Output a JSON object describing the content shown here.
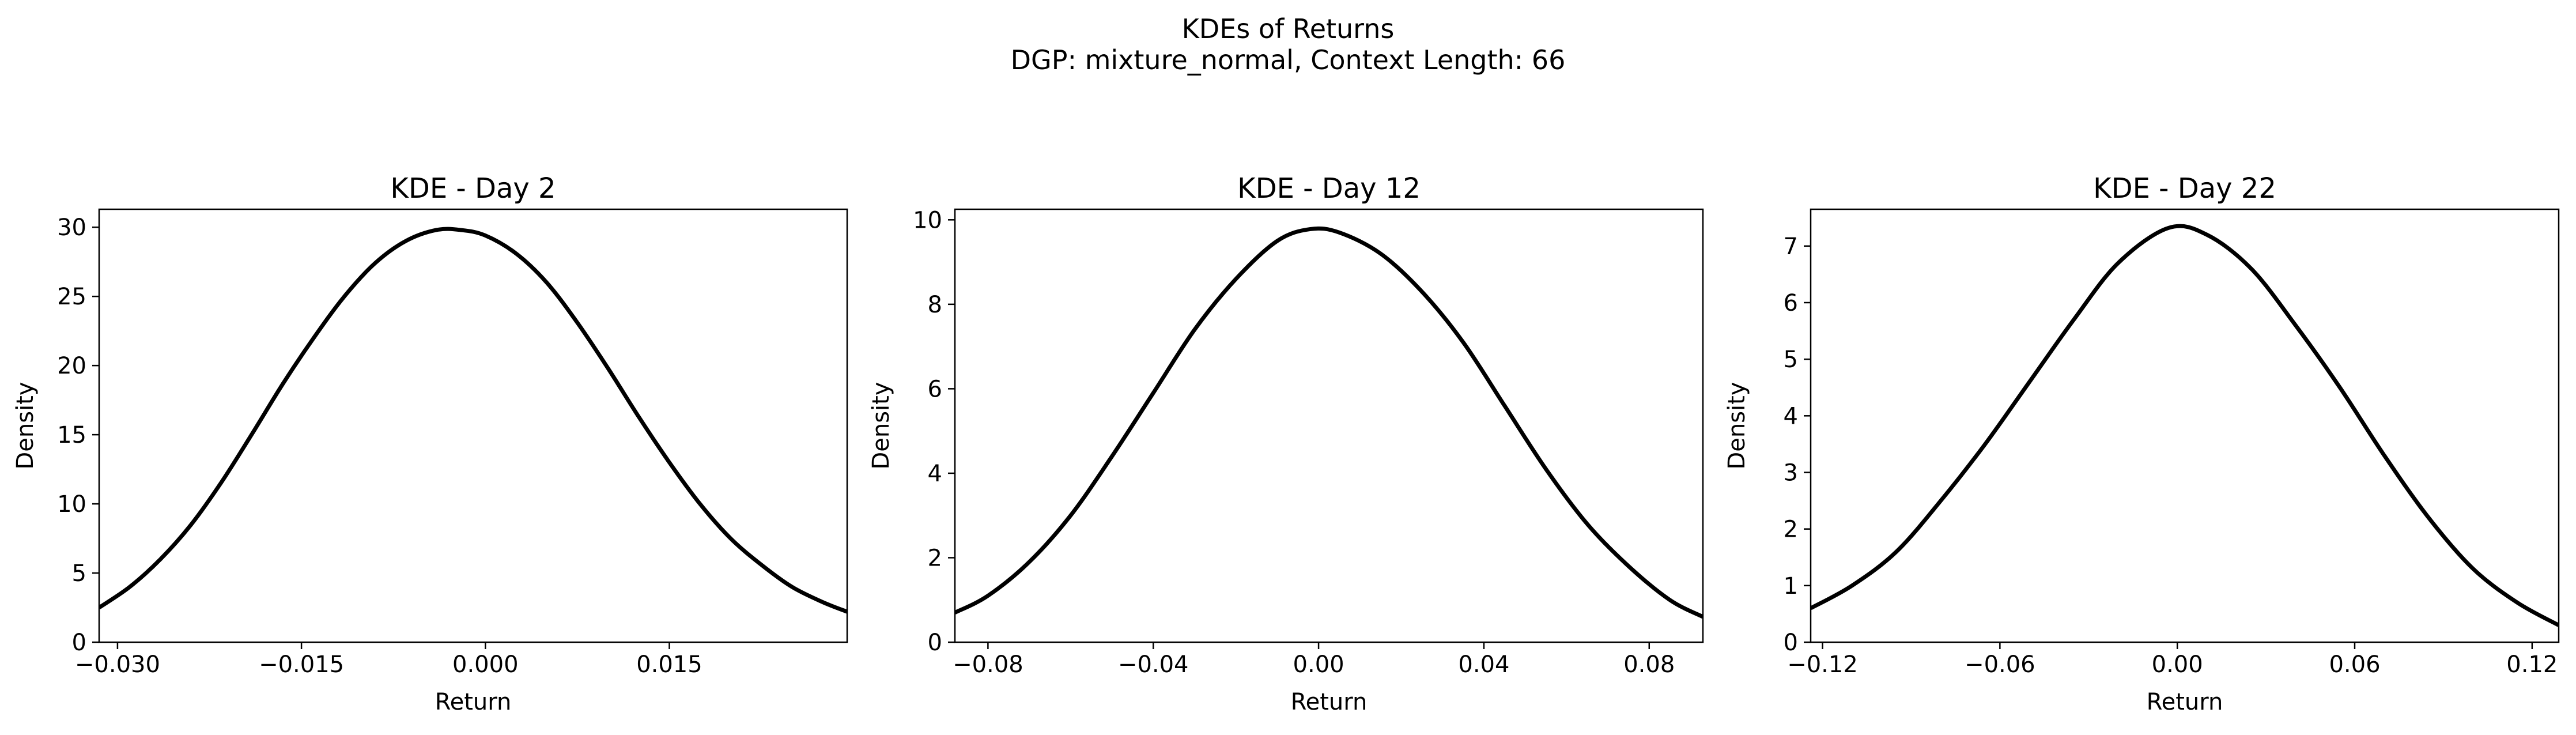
{
  "figure": {
    "suptitle_line1": "KDEs of Returns",
    "suptitle_line2": "DGP: mixture_normal, Context Length: 66",
    "line_color": "#000000"
  },
  "chart_data": [
    {
      "type": "line",
      "title": "KDE - Day 2",
      "xlabel": "Return",
      "ylabel": "Density",
      "xlim": [
        -0.0315,
        0.0295
      ],
      "ylim": [
        0,
        31.3
      ],
      "xticks": [
        -0.03,
        -0.015,
        0.0,
        0.015
      ],
      "xtick_labels": [
        "−0.030",
        "−0.015",
        "0.000",
        "0.015"
      ],
      "yticks": [
        0,
        5,
        10,
        15,
        20,
        25,
        30
      ],
      "ytick_labels": [
        "0",
        "5",
        "10",
        "15",
        "20",
        "25",
        "30"
      ],
      "grid": false,
      "series": [
        {
          "x": [
            -0.0315,
            -0.029,
            -0.0265,
            -0.024,
            -0.0215,
            -0.019,
            -0.0165,
            -0.014,
            -0.0115,
            -0.009,
            -0.0065,
            -0.004,
            -0.002,
            0.0,
            0.0025,
            0.005,
            0.0075,
            0.01,
            0.0125,
            0.015,
            0.0175,
            0.02,
            0.0225,
            0.025,
            0.0275,
            0.0295
          ],
          "y": [
            2.5,
            4.0,
            6.0,
            8.5,
            11.6,
            15.1,
            18.7,
            22.0,
            25.0,
            27.4,
            29.0,
            29.8,
            29.8,
            29.4,
            28.1,
            26.0,
            23.1,
            19.8,
            16.3,
            13.0,
            10.0,
            7.5,
            5.6,
            4.0,
            2.9,
            2.2
          ]
        }
      ]
    },
    {
      "type": "line",
      "title": "KDE - Day 12",
      "xlabel": "Return",
      "ylabel": "Density",
      "xlim": [
        -0.088,
        0.093
      ],
      "ylim": [
        0,
        10.25
      ],
      "xticks": [
        -0.08,
        -0.04,
        0.0,
        0.04,
        0.08
      ],
      "xtick_labels": [
        "−0.08",
        "−0.04",
        "0.00",
        "0.04",
        "0.08"
      ],
      "yticks": [
        0,
        2,
        4,
        6,
        8,
        10
      ],
      "ytick_labels": [
        "0",
        "2",
        "4",
        "6",
        "8",
        "10"
      ],
      "grid": false,
      "series": [
        {
          "x": [
            -0.088,
            -0.08,
            -0.07,
            -0.06,
            -0.05,
            -0.04,
            -0.03,
            -0.02,
            -0.01,
            -0.002,
            0.005,
            0.015,
            0.025,
            0.035,
            0.045,
            0.055,
            0.065,
            0.075,
            0.085,
            0.093
          ],
          "y": [
            0.7,
            1.1,
            1.9,
            3.0,
            4.4,
            5.9,
            7.4,
            8.6,
            9.5,
            9.78,
            9.7,
            9.2,
            8.3,
            7.1,
            5.6,
            4.1,
            2.8,
            1.8,
            1.0,
            0.6
          ]
        }
      ]
    },
    {
      "type": "line",
      "title": "KDE - Day 22",
      "xlabel": "Return",
      "ylabel": "Density",
      "xlim": [
        -0.124,
        0.129
      ],
      "ylim": [
        0,
        7.65
      ],
      "xticks": [
        -0.12,
        -0.06,
        0.0,
        0.06,
        0.12
      ],
      "xtick_labels": [
        "−0.12",
        "−0.06",
        "0.00",
        "0.06",
        "0.12"
      ],
      "yticks": [
        0,
        1,
        2,
        3,
        4,
        5,
        6,
        7
      ],
      "ytick_labels": [
        "0",
        "1",
        "2",
        "3",
        "4",
        "5",
        "6",
        "7"
      ],
      "grid": false,
      "series": [
        {
          "x": [
            -0.124,
            -0.11,
            -0.095,
            -0.08,
            -0.065,
            -0.05,
            -0.035,
            -0.02,
            -0.003,
            0.01,
            0.025,
            0.04,
            0.055,
            0.07,
            0.085,
            0.1,
            0.115,
            0.129
          ],
          "y": [
            0.6,
            1.0,
            1.6,
            2.5,
            3.5,
            4.6,
            5.7,
            6.7,
            7.32,
            7.2,
            6.6,
            5.6,
            4.5,
            3.3,
            2.2,
            1.3,
            0.7,
            0.3
          ]
        }
      ]
    }
  ]
}
